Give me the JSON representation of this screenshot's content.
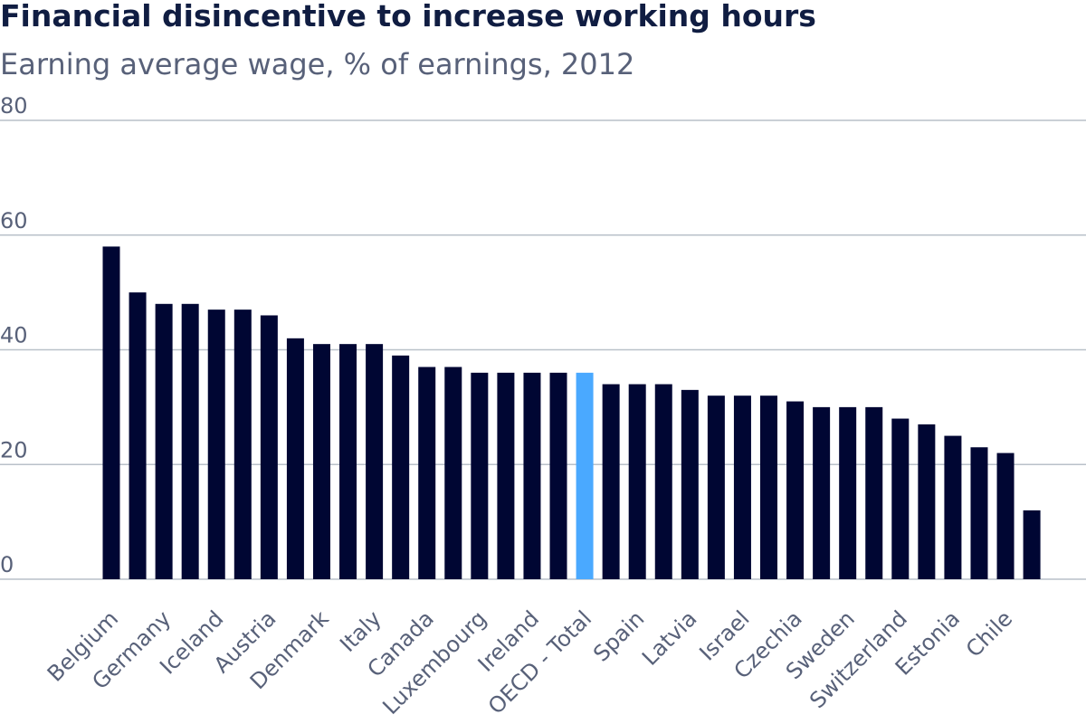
{
  "chart_data": {
    "type": "bar",
    "title": "Financial disincentive to increase working hours",
    "subtitle": "Earning average wage, % of earnings, 2012",
    "xlabel": "",
    "ylabel": "",
    "ylim": [
      0,
      80
    ],
    "yticks": [
      "0",
      "20",
      "40",
      "60",
      "80"
    ],
    "grid": true,
    "categories": [
      "Belgium",
      "",
      "Germany",
      "",
      "Iceland",
      "",
      "Austria",
      "",
      "Denmark",
      "",
      "Italy",
      "",
      "Canada",
      "",
      "Luxembourg",
      "",
      "Ireland",
      "",
      "OECD - Total",
      "",
      "Spain",
      "",
      "Latvia",
      "",
      "Israel",
      "",
      "Czechia",
      "",
      "Sweden",
      "",
      "Switzerland",
      "",
      "Estonia",
      "",
      "Chile",
      ""
    ],
    "values": [
      58,
      50,
      48,
      48,
      47,
      47,
      46,
      42,
      41,
      41,
      41,
      39,
      37,
      37,
      36,
      36,
      36,
      36,
      36,
      34,
      34,
      34,
      33,
      32,
      32,
      32,
      31,
      30,
      30,
      30,
      28,
      27,
      25,
      23,
      22,
      12
    ],
    "highlight_category": "OECD - Total",
    "colors": {
      "bar": "#000633",
      "highlight": "#4aa9ff",
      "grid": "#b9c1c9",
      "title": "#101d42",
      "text": "#586179"
    }
  }
}
